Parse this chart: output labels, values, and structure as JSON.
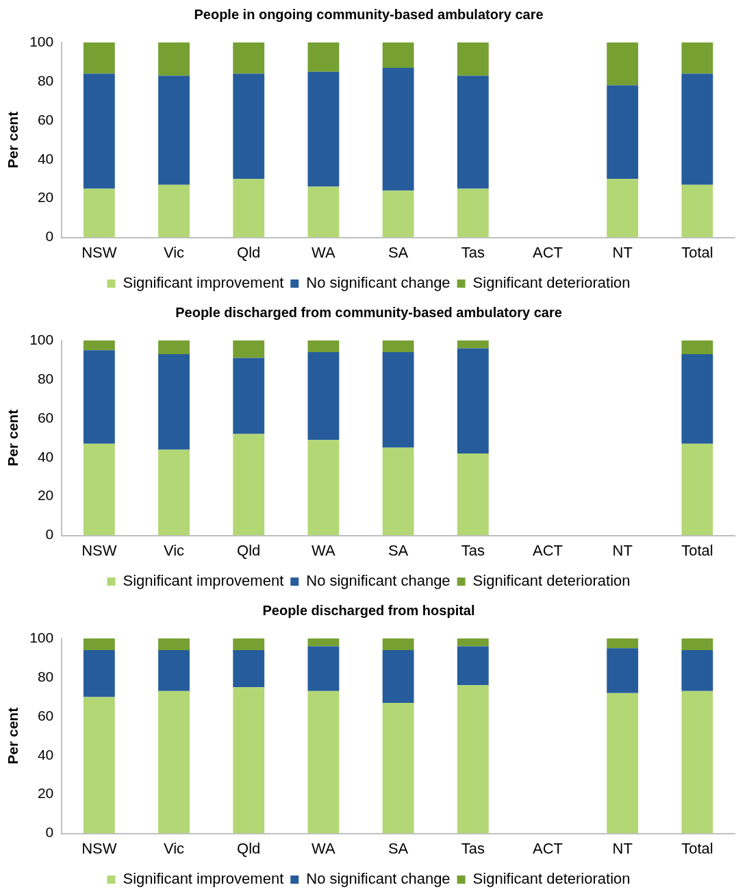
{
  "chart_data": [
    {
      "type": "bar",
      "title": "People in ongoing community-based ambulatory care",
      "ylabel": "Per cent",
      "categories": [
        "NSW",
        "Vic",
        "Qld",
        "WA",
        "SA",
        "Tas",
        "ACT",
        "NT",
        "Total"
      ],
      "stacked": true,
      "ylim": [
        0,
        100
      ],
      "yticks": [
        0,
        20,
        40,
        60,
        80,
        100
      ],
      "grid": false,
      "legend": "bottom",
      "series": [
        {
          "name": "Significant improvement",
          "color": "#b3d775",
          "values": [
            25,
            27,
            30,
            26,
            24,
            25,
            null,
            30,
            27
          ]
        },
        {
          "name": "No significant change",
          "color": "#265c9b",
          "values": [
            59,
            56,
            54,
            59,
            63,
            58,
            null,
            48,
            57
          ]
        },
        {
          "name": "Significant deterioration",
          "color": "#76a032",
          "values": [
            16,
            17,
            16,
            15,
            13,
            17,
            null,
            22,
            16
          ]
        }
      ]
    },
    {
      "type": "bar",
      "title": "People discharged from community-based ambulatory care",
      "ylabel": "Per cent",
      "categories": [
        "NSW",
        "Vic",
        "Qld",
        "WA",
        "SA",
        "Tas",
        "ACT",
        "NT",
        "Total"
      ],
      "stacked": true,
      "ylim": [
        0,
        100
      ],
      "yticks": [
        0,
        20,
        40,
        60,
        80,
        100
      ],
      "grid": false,
      "legend": "bottom",
      "series": [
        {
          "name": "Significant improvement",
          "color": "#b3d775",
          "values": [
            47,
            44,
            52,
            49,
            45,
            42,
            null,
            null,
            47
          ]
        },
        {
          "name": "No significant change",
          "color": "#265c9b",
          "values": [
            48,
            49,
            39,
            45,
            49,
            54,
            null,
            null,
            46
          ]
        },
        {
          "name": "Significant deterioration",
          "color": "#76a032",
          "values": [
            5,
            7,
            9,
            6,
            6,
            4,
            null,
            null,
            7
          ]
        }
      ]
    },
    {
      "type": "bar",
      "title": "People discharged from hospital",
      "ylabel": "Per cent",
      "categories": [
        "NSW",
        "Vic",
        "Qld",
        "WA",
        "SA",
        "Tas",
        "ACT",
        "NT",
        "Total"
      ],
      "stacked": true,
      "ylim": [
        0,
        100
      ],
      "yticks": [
        0,
        20,
        40,
        60,
        80,
        100
      ],
      "grid": false,
      "legend": "bottom",
      "series": [
        {
          "name": "Significant improvement",
          "color": "#b3d775",
          "values": [
            70,
            73,
            75,
            73,
            67,
            76,
            null,
            72,
            73
          ]
        },
        {
          "name": "No significant change",
          "color": "#265c9b",
          "values": [
            24,
            21,
            19,
            23,
            27,
            20,
            null,
            23,
            21
          ]
        },
        {
          "name": "Significant deterioration",
          "color": "#76a032",
          "values": [
            6,
            6,
            6,
            4,
            6,
            4,
            null,
            5,
            6
          ]
        }
      ]
    }
  ]
}
